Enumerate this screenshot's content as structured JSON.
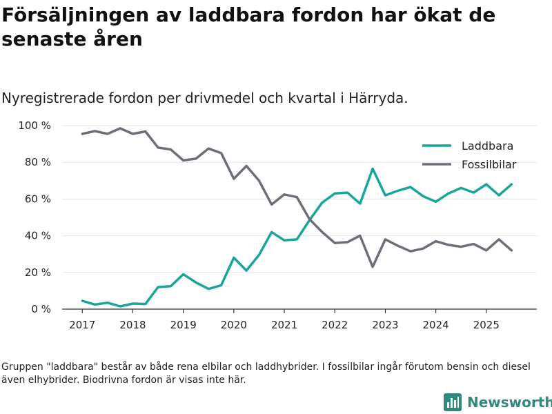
{
  "title": "Försäljningen av laddbara fordon har ökat de senaste åren",
  "subtitle": "Nyregistrerade fordon per drivmedel och kvartal i Härryda.",
  "footnote": "Gruppen \"laddbara\" består av både rena elbilar och laddhybrider. I fossilbilar ingår förutom bensin och diesel även elhybrider. Biodrivna fordon är visas inte här.",
  "logo": {
    "text": "Newsworthy",
    "icon": "bar-chart-logo-icon"
  },
  "colors": {
    "laddbara": "#17a699",
    "fossil": "#6e6e78",
    "grid": "#e3e3e3",
    "axis": "#333333",
    "logo": "#2f8a7d"
  },
  "chart_data": {
    "type": "line",
    "title": "Försäljningen av laddbara fordon har ökat de senaste åren",
    "subtitle": "Nyregistrerade fordon per drivmedel och kvartal i Härryda.",
    "xlabel": "",
    "ylabel": "",
    "x_ticks": [
      "2017",
      "2018",
      "2019",
      "2020",
      "2021",
      "2022",
      "2023",
      "2024",
      "2025"
    ],
    "y_ticks": [
      "0 %",
      "20 %",
      "40 %",
      "60 %",
      "80 %",
      "100 %"
    ],
    "ylim": [
      0,
      100
    ],
    "xlim": [
      2016.6,
      2026.0
    ],
    "legend_position": "top-right",
    "x": [
      2017.0,
      2017.25,
      2017.5,
      2017.75,
      2018.0,
      2018.25,
      2018.5,
      2018.75,
      2019.0,
      2019.25,
      2019.5,
      2019.75,
      2020.0,
      2020.25,
      2020.5,
      2020.75,
      2021.0,
      2021.25,
      2021.5,
      2021.75,
      2022.0,
      2022.25,
      2022.5,
      2022.75,
      2023.0,
      2023.25,
      2023.5,
      2023.75,
      2024.0,
      2024.25,
      2024.5,
      2024.75,
      2025.0,
      2025.25,
      2025.5
    ],
    "series": [
      {
        "name": "Laddbara",
        "color": "#17a699",
        "values": [
          4.5,
          2.5,
          3.5,
          1.5,
          3,
          2.8,
          12,
          12.5,
          19,
          14.5,
          11,
          13,
          28,
          21,
          29.5,
          42,
          37.5,
          38,
          48.5,
          58,
          63,
          63.5,
          57.5,
          76.5,
          62,
          64.5,
          66.5,
          61.5,
          58.5,
          63,
          66,
          63.5,
          68,
          62,
          68
        ]
      },
      {
        "name": "Fossilbilar",
        "color": "#6e6e78",
        "values": [
          95.5,
          97,
          95.5,
          98.5,
          95.5,
          96.8,
          88,
          87,
          81,
          82,
          87.5,
          85,
          71,
          78,
          70,
          57,
          62.5,
          61,
          49,
          42,
          36,
          36.5,
          40,
          23,
          38,
          34.5,
          31.5,
          33,
          37,
          35,
          34,
          35.5,
          32,
          38,
          32
        ]
      }
    ]
  }
}
